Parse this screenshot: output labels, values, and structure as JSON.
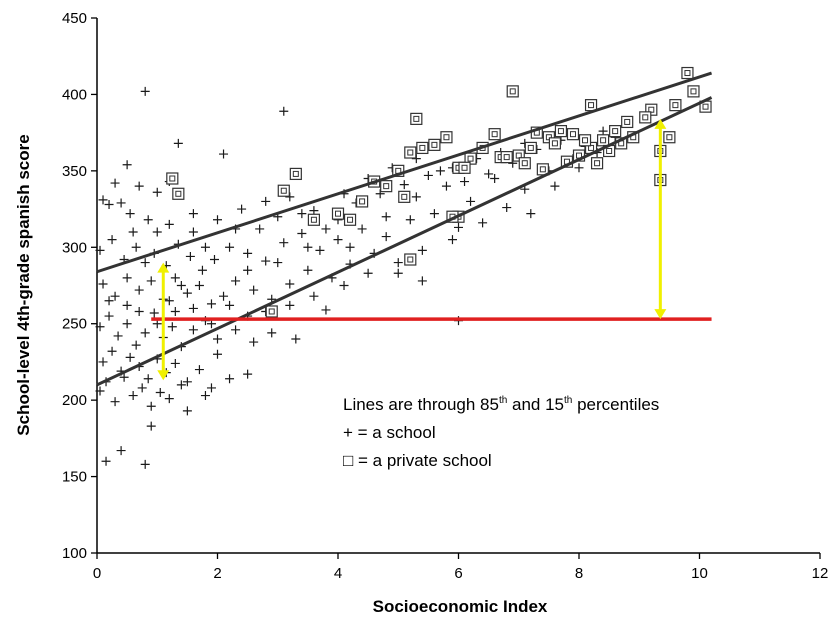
{
  "chart_data": {
    "type": "scatter",
    "title": "",
    "xlabel": "Socioeconomic Index",
    "ylabel": "School-level 4th-grade spanish score",
    "xlim": [
      0,
      12
    ],
    "ylim": [
      100,
      450
    ],
    "x_ticks": [
      0,
      2,
      4,
      6,
      8,
      10,
      12
    ],
    "y_ticks": [
      100,
      150,
      200,
      250,
      300,
      350,
      400,
      450
    ],
    "x_tick_labels": [
      "0",
      "2",
      "4",
      "6",
      "8",
      "10",
      "12"
    ],
    "y_tick_labels": [
      "100",
      "150",
      "200",
      "250",
      "300",
      "350",
      "400",
      "450"
    ],
    "grid": false,
    "annotation": {
      "line1_prefix": "Lines are through 85",
      "line1_sup1": "th",
      "line1_mid": " and 15",
      "line1_sup2": "th",
      "line1_suffix": " percentiles",
      "line2": "+ = a school",
      "line3": "□ = a private school"
    },
    "lines": [
      {
        "label": "85th percentile",
        "color": "#333333",
        "x": [
          0,
          10.2
        ],
        "y": [
          284,
          414
        ]
      },
      {
        "label": "15th percentile",
        "color": "#333333",
        "x": [
          0,
          10.2
        ],
        "y": [
          210,
          398
        ]
      }
    ],
    "reference_line": {
      "color": "#e02020",
      "x": [
        0.9,
        10.2
      ],
      "y": 253
    },
    "arrows": [
      {
        "color": "#f0f000",
        "x": 1.1,
        "y_from": 213,
        "y_to": 290
      },
      {
        "color": "#f0f000",
        "x": 9.35,
        "y_from": 253,
        "y_to": 384
      }
    ],
    "series": [
      {
        "marker": "plus",
        "points": [
          [
            0.8,
            402
          ],
          [
            0.8,
            158
          ],
          [
            0.15,
            160
          ],
          [
            0.4,
            167
          ],
          [
            0.9,
            183
          ],
          [
            3.1,
            389
          ],
          [
            1.35,
            368
          ],
          [
            2.1,
            361
          ],
          [
            0.5,
            354
          ],
          [
            0.1,
            331
          ],
          [
            0.3,
            342
          ],
          [
            0.7,
            340
          ],
          [
            1.0,
            336
          ],
          [
            0.2,
            328
          ],
          [
            0.55,
            322
          ],
          [
            0.85,
            318
          ],
          [
            1.2,
            315
          ],
          [
            1.6,
            322
          ],
          [
            2.0,
            318
          ],
          [
            2.4,
            325
          ],
          [
            2.8,
            330
          ],
          [
            3.2,
            333
          ],
          [
            3.6,
            324
          ],
          [
            4.0,
            318
          ],
          [
            4.3,
            329
          ],
          [
            4.7,
            335
          ],
          [
            5.1,
            341
          ],
          [
            5.5,
            347
          ],
          [
            5.9,
            352
          ],
          [
            6.3,
            358
          ],
          [
            6.7,
            362
          ],
          [
            7.1,
            368
          ],
          [
            7.5,
            372
          ],
          [
            7.9,
            375
          ],
          [
            8.4,
            376
          ],
          [
            8.8,
            382
          ],
          [
            0.05,
            298
          ],
          [
            0.25,
            305
          ],
          [
            0.45,
            292
          ],
          [
            0.65,
            300
          ],
          [
            0.95,
            296
          ],
          [
            1.15,
            288
          ],
          [
            1.35,
            302
          ],
          [
            1.55,
            294
          ],
          [
            1.75,
            285
          ],
          [
            1.95,
            292
          ],
          [
            2.2,
            300
          ],
          [
            2.5,
            296
          ],
          [
            2.8,
            291
          ],
          [
            3.1,
            303
          ],
          [
            3.4,
            309
          ],
          [
            3.7,
            298
          ],
          [
            4.0,
            305
          ],
          [
            4.4,
            312
          ],
          [
            4.8,
            307
          ],
          [
            5.2,
            318
          ],
          [
            5.6,
            322
          ],
          [
            6.0,
            313
          ],
          [
            0.1,
            276
          ],
          [
            0.3,
            268
          ],
          [
            0.5,
            262
          ],
          [
            0.7,
            272
          ],
          [
            0.9,
            278
          ],
          [
            1.1,
            266
          ],
          [
            1.3,
            258
          ],
          [
            1.5,
            270
          ],
          [
            1.7,
            275
          ],
          [
            1.9,
            263
          ],
          [
            2.1,
            268
          ],
          [
            2.3,
            278
          ],
          [
            2.6,
            272
          ],
          [
            2.9,
            266
          ],
          [
            3.2,
            276
          ],
          [
            3.5,
            285
          ],
          [
            3.9,
            280
          ],
          [
            4.2,
            289
          ],
          [
            4.6,
            296
          ],
          [
            5.0,
            283
          ],
          [
            5.4,
            278
          ],
          [
            0.05,
            248
          ],
          [
            0.2,
            255
          ],
          [
            0.35,
            242
          ],
          [
            0.5,
            250
          ],
          [
            0.65,
            236
          ],
          [
            0.8,
            244
          ],
          [
            0.95,
            257
          ],
          [
            1.1,
            241
          ],
          [
            1.25,
            248
          ],
          [
            1.4,
            235
          ],
          [
            1.6,
            246
          ],
          [
            1.8,
            252
          ],
          [
            2.0,
            240
          ],
          [
            2.3,
            246
          ],
          [
            2.6,
            238
          ],
          [
            2.9,
            244
          ],
          [
            3.3,
            240
          ],
          [
            3.8,
            259
          ],
          [
            6.0,
            252
          ],
          [
            0.1,
            225
          ],
          [
            0.25,
            232
          ],
          [
            0.4,
            219
          ],
          [
            0.55,
            228
          ],
          [
            0.7,
            222
          ],
          [
            0.85,
            214
          ],
          [
            1.0,
            227
          ],
          [
            1.15,
            218
          ],
          [
            1.3,
            224
          ],
          [
            1.5,
            212
          ],
          [
            1.7,
            220
          ],
          [
            1.9,
            208
          ],
          [
            2.2,
            214
          ],
          [
            2.5,
            217
          ],
          [
            0.05,
            206
          ],
          [
            0.3,
            199
          ],
          [
            0.6,
            203
          ],
          [
            0.9,
            196
          ],
          [
            1.2,
            201
          ],
          [
            1.5,
            193
          ],
          [
            1.8,
            203
          ],
          [
            0.15,
            212
          ],
          [
            0.45,
            215
          ],
          [
            0.75,
            208
          ],
          [
            1.05,
            205
          ],
          [
            1.4,
            210
          ],
          [
            2.0,
            230
          ],
          [
            1.0,
            310
          ],
          [
            1.6,
            310
          ],
          [
            2.3,
            312
          ],
          [
            2.7,
            312
          ],
          [
            3.0,
            320
          ],
          [
            3.4,
            322
          ],
          [
            3.8,
            312
          ],
          [
            4.1,
            335
          ],
          [
            4.5,
            345
          ],
          [
            4.9,
            352
          ],
          [
            5.3,
            358
          ],
          [
            5.7,
            350
          ],
          [
            6.1,
            343
          ],
          [
            6.5,
            348
          ],
          [
            6.9,
            355
          ],
          [
            7.3,
            364
          ],
          [
            7.7,
            370
          ],
          [
            8.1,
            366
          ],
          [
            8.6,
            372
          ],
          [
            1.2,
            343
          ],
          [
            0.4,
            329
          ],
          [
            0.6,
            310
          ],
          [
            0.8,
            290
          ],
          [
            1.3,
            280
          ],
          [
            1.8,
            300
          ],
          [
            2.5,
            285
          ],
          [
            3.0,
            290
          ],
          [
            3.5,
            300
          ],
          [
            4.2,
            300
          ],
          [
            4.8,
            320
          ],
          [
            5.3,
            333
          ],
          [
            5.8,
            340
          ],
          [
            6.2,
            330
          ],
          [
            6.6,
            345
          ],
          [
            7.1,
            338
          ],
          [
            7.5,
            350
          ],
          [
            7.9,
            358
          ],
          [
            8.3,
            355
          ],
          [
            0.2,
            265
          ],
          [
            0.5,
            280
          ],
          [
            0.7,
            258
          ],
          [
            1.0,
            250
          ],
          [
            1.2,
            265
          ],
          [
            1.4,
            275
          ],
          [
            1.6,
            260
          ],
          [
            1.9,
            250
          ],
          [
            2.2,
            262
          ],
          [
            2.5,
            255
          ],
          [
            2.8,
            258
          ],
          [
            3.2,
            262
          ],
          [
            3.6,
            268
          ],
          [
            4.1,
            275
          ],
          [
            4.5,
            283
          ],
          [
            5.0,
            290
          ],
          [
            5.4,
            298
          ],
          [
            5.9,
            305
          ],
          [
            6.4,
            316
          ],
          [
            6.8,
            326
          ],
          [
            7.2,
            322
          ],
          [
            7.6,
            340
          ],
          [
            8.0,
            352
          ],
          [
            8.3,
            362
          ]
        ]
      },
      {
        "marker": "square",
        "points": [
          [
            9.8,
            414
          ],
          [
            9.6,
            393
          ],
          [
            9.9,
            402
          ],
          [
            10.1,
            392
          ],
          [
            9.2,
            390
          ],
          [
            9.35,
            363
          ],
          [
            9.35,
            344
          ],
          [
            9.5,
            372
          ],
          [
            9.1,
            385
          ],
          [
            8.8,
            382
          ],
          [
            8.6,
            376
          ],
          [
            8.4,
            370
          ],
          [
            8.2,
            365
          ],
          [
            8.0,
            360
          ],
          [
            7.8,
            356
          ],
          [
            7.5,
            372
          ],
          [
            7.2,
            365
          ],
          [
            7.0,
            360
          ],
          [
            6.9,
            402
          ],
          [
            7.3,
            375
          ],
          [
            7.6,
            368
          ],
          [
            7.9,
            374
          ],
          [
            8.2,
            393
          ],
          [
            8.5,
            363
          ],
          [
            8.3,
            355
          ],
          [
            6.6,
            374
          ],
          [
            6.4,
            365
          ],
          [
            6.2,
            358
          ],
          [
            6.0,
            352
          ],
          [
            5.8,
            372
          ],
          [
            5.6,
            367
          ],
          [
            5.4,
            365
          ],
          [
            5.2,
            362
          ],
          [
            5.3,
            384
          ],
          [
            5.0,
            350
          ],
          [
            4.8,
            340
          ],
          [
            5.1,
            333
          ],
          [
            5.2,
            292
          ],
          [
            6.0,
            320
          ],
          [
            4.6,
            343
          ],
          [
            4.4,
            330
          ],
          [
            4.2,
            318
          ],
          [
            4.0,
            322
          ],
          [
            3.6,
            318
          ],
          [
            3.3,
            348
          ],
          [
            3.1,
            337
          ],
          [
            2.9,
            258
          ],
          [
            1.25,
            345
          ],
          [
            1.35,
            335
          ],
          [
            6.7,
            359
          ],
          [
            6.1,
            352
          ],
          [
            5.9,
            320
          ],
          [
            7.4,
            351
          ],
          [
            7.7,
            376
          ],
          [
            8.7,
            368
          ],
          [
            8.9,
            372
          ],
          [
            7.1,
            355
          ],
          [
            6.8,
            359
          ],
          [
            8.1,
            370
          ]
        ]
      }
    ]
  }
}
